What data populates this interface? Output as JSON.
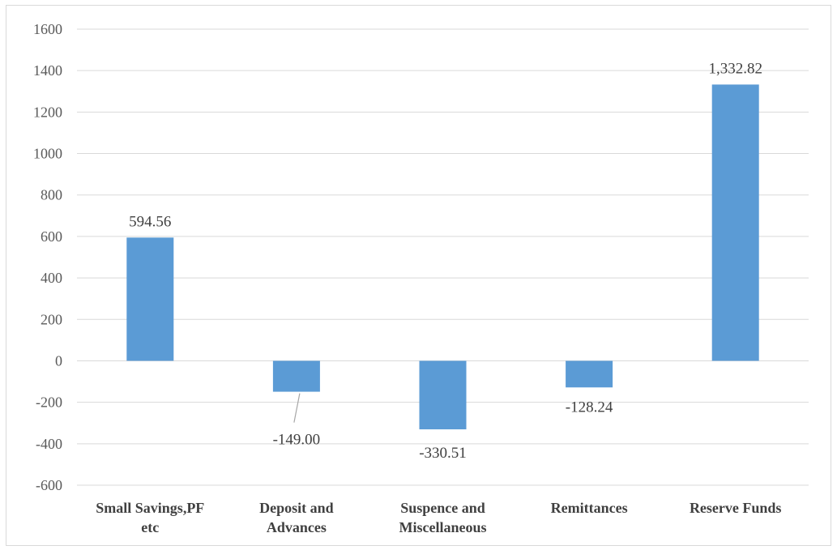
{
  "chart_data": {
    "type": "bar",
    "categories": [
      [
        "Small Savings,PF",
        "etc"
      ],
      [
        "Deposit and",
        "Advances"
      ],
      [
        "Suspence and",
        "Miscellaneous"
      ],
      [
        "Remittances"
      ],
      [
        "Reserve Funds"
      ]
    ],
    "values": [
      594.56,
      -149.0,
      -330.51,
      -128.24,
      1332.82
    ],
    "data_labels": [
      "594.56",
      "-149.00",
      "-330.51",
      "-128.24",
      "1,332.82"
    ],
    "ylim": [
      -600,
      1600
    ],
    "yticks": [
      1600,
      1400,
      1200,
      1000,
      800,
      600,
      400,
      200,
      0,
      -200,
      -400,
      -600
    ],
    "title": "",
    "xlabel": "",
    "ylabel": "",
    "grid": true,
    "bar_color": "#5b9bd5",
    "grid_color": "#d9d9d9"
  }
}
